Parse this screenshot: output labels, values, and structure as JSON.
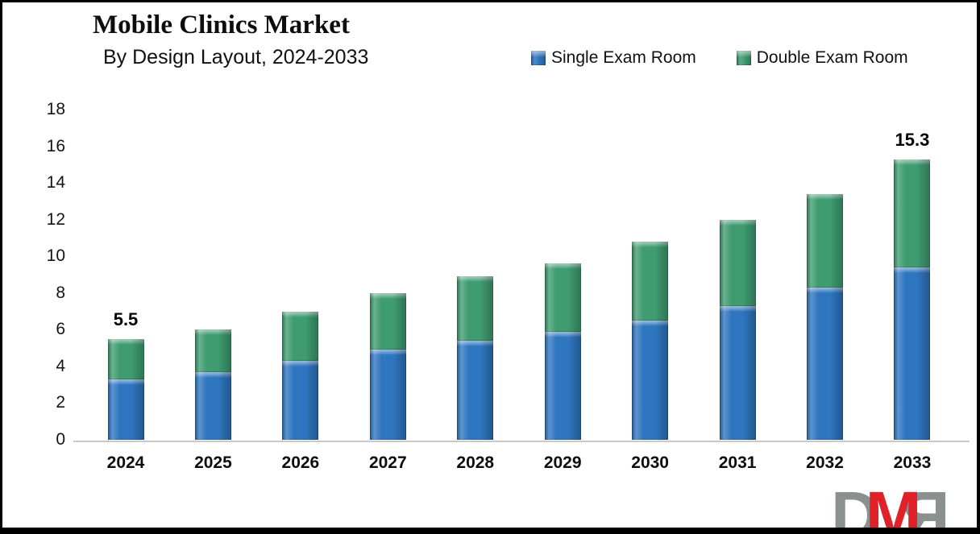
{
  "header": {
    "title": "Mobile Clinics Market",
    "subtitle": "By Design Layout, 2024-2033"
  },
  "legend": {
    "items": [
      {
        "label": "Single Exam Room",
        "color": "#2f76c0"
      },
      {
        "label": "Double Exam Room",
        "color": "#3f9c71"
      }
    ]
  },
  "chart_data": {
    "type": "bar",
    "stacked": true,
    "title": "Mobile Clinics Market",
    "subtitle": "By Design Layout, 2024-2033",
    "categories": [
      "2024",
      "2025",
      "2026",
      "2027",
      "2028",
      "2029",
      "2030",
      "2031",
      "2032",
      "2033"
    ],
    "series": [
      {
        "name": "Single Exam Room",
        "color": "#2f76c0",
        "values": [
          3.3,
          3.7,
          4.3,
          4.9,
          5.4,
          5.9,
          6.5,
          7.3,
          8.3,
          9.4
        ]
      },
      {
        "name": "Double Exam Room",
        "color": "#3f9c71",
        "values": [
          2.2,
          2.3,
          2.7,
          3.1,
          3.5,
          3.7,
          4.3,
          4.7,
          5.1,
          5.9
        ]
      }
    ],
    "totals": [
      5.5,
      6.0,
      7.0,
      8.0,
      8.9,
      9.6,
      10.8,
      12.0,
      13.4,
      15.3
    ],
    "data_labels": [
      {
        "category": "2024",
        "text": "5.5"
      },
      {
        "category": "2033",
        "text": "15.3"
      }
    ],
    "xlabel": "",
    "ylabel": "",
    "ylim": [
      0,
      18
    ],
    "yticks": [
      0,
      2,
      4,
      6,
      8,
      10,
      12,
      14,
      16,
      18
    ],
    "grid": false,
    "legend_position": "top-right"
  },
  "watermark": {
    "letters": [
      {
        "char": "D",
        "color": "#8b9090",
        "mirrored": false
      },
      {
        "char": "M",
        "color": "#e02128",
        "mirrored": false
      },
      {
        "char": "R",
        "color": "#8b9090",
        "mirrored": true
      }
    ]
  }
}
